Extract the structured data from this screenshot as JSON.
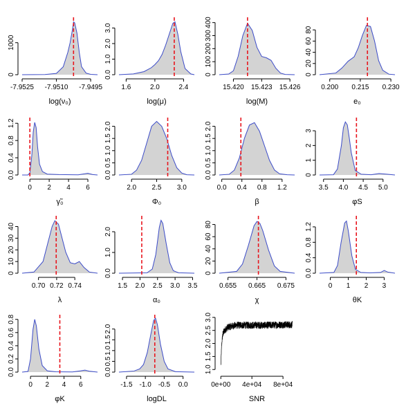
{
  "chart_data": [
    {
      "type": "area",
      "xlabel": "log(ν₀)",
      "xlim": [
        -7.9525,
        -7.9492
      ],
      "ylim": [
        0,
        1750
      ],
      "xticks": [
        -7.9525,
        -7.951,
        -7.9495
      ],
      "xtick_labels": [
        "-7.9525",
        "-7.9510",
        "-7.9495"
      ],
      "yticks": [
        0,
        1000
      ],
      "ytick_labels": [
        "0",
        "1000"
      ],
      "true_value": -7.95025,
      "x": [
        -7.9525,
        -7.9515,
        -7.951,
        -7.9507,
        -7.9505,
        -7.9504,
        -7.9503,
        -7.95025,
        -7.9502,
        -7.9501,
        -7.95,
        -7.9499,
        -7.9497,
        -7.9495,
        -7.9492
      ],
      "y": [
        0,
        5,
        40,
        250,
        700,
        1000,
        1400,
        1650,
        1620,
        1300,
        700,
        250,
        50,
        10,
        0
      ]
    },
    {
      "type": "area",
      "xlabel": "log(μ)",
      "xlim": [
        1.5,
        2.55
      ],
      "ylim": [
        0,
        3.6
      ],
      "xticks": [
        1.6,
        2.0,
        2.4
      ],
      "xtick_labels": [
        "1.6",
        "2.0",
        "2.4"
      ],
      "yticks": [
        0.0,
        1.0,
        2.0,
        3.0
      ],
      "ytick_labels": [
        "0.0",
        "1.0",
        "2.0",
        "3.0"
      ],
      "true_value": 2.27,
      "x": [
        1.5,
        1.7,
        1.85,
        1.95,
        2.0,
        2.05,
        2.1,
        2.15,
        2.2,
        2.25,
        2.28,
        2.32,
        2.36,
        2.42,
        2.5,
        2.55
      ],
      "y": [
        0,
        0.05,
        0.2,
        0.45,
        0.65,
        0.9,
        1.3,
        1.9,
        2.6,
        3.3,
        3.4,
        2.6,
        1.5,
        0.4,
        0.05,
        0
      ]
    },
    {
      "type": "area",
      "xlabel": "log(M)",
      "xlim": [
        15.4185,
        15.4265
      ],
      "ylim": [
        0,
        430
      ],
      "xticks": [
        15.42,
        15.423,
        15.426
      ],
      "xtick_labels": [
        "15.420",
        "15.423",
        "15.426"
      ],
      "yticks": [
        0,
        100,
        200,
        300,
        400
      ],
      "ytick_labels": [
        "0",
        "100",
        "200",
        "300",
        "400"
      ],
      "true_value": 15.4215,
      "x": [
        15.4185,
        15.4195,
        15.42,
        15.4205,
        15.421,
        15.4215,
        15.422,
        15.4225,
        15.423,
        15.4235,
        15.424,
        15.4245,
        15.425,
        15.4255,
        15.4265
      ],
      "y": [
        0,
        5,
        30,
        140,
        300,
        395,
        340,
        210,
        140,
        130,
        110,
        50,
        12,
        2,
        0
      ]
    },
    {
      "type": "area",
      "xlabel": "e₀",
      "xlim": [
        0.195,
        0.232
      ],
      "ylim": [
        0,
        100
      ],
      "xticks": [
        0.2,
        0.215,
        0.23
      ],
      "xtick_labels": [
        "0.200",
        "0.215",
        "0.230"
      ],
      "yticks": [
        0,
        20,
        40,
        60,
        80
      ],
      "ytick_labels": [
        "0",
        "20",
        "40",
        "60",
        "80"
      ],
      "true_value": 0.2185,
      "x": [
        0.195,
        0.203,
        0.206,
        0.209,
        0.212,
        0.214,
        0.216,
        0.218,
        0.22,
        0.222,
        0.224,
        0.226,
        0.229,
        0.232
      ],
      "y": [
        0,
        3,
        12,
        24,
        32,
        48,
        70,
        88,
        86,
        60,
        25,
        8,
        1,
        0
      ]
    },
    {
      "type": "area",
      "xlabel": "γ̃₀",
      "xlim": [
        -0.8,
        7
      ],
      "ylim": [
        0,
        1.3
      ],
      "xticks": [
        0,
        2,
        4,
        6
      ],
      "xtick_labels": [
        "0",
        "2",
        "4",
        "6"
      ],
      "yticks": [
        0.0,
        0.4,
        0.8,
        1.2
      ],
      "ytick_labels": [
        "0.0",
        "0.4",
        "0.8",
        "1.2"
      ],
      "true_value": 0.0,
      "x": [
        -0.8,
        -0.2,
        0.0,
        0.2,
        0.35,
        0.5,
        0.65,
        0.8,
        1.0,
        1.3,
        1.8,
        3,
        5,
        6,
        6.5,
        7
      ],
      "y": [
        0,
        0,
        0.05,
        0.45,
        1.0,
        1.22,
        1.1,
        0.65,
        0.25,
        0.08,
        0.02,
        0.01,
        0.005,
        0.04,
        0.01,
        0
      ]
    },
    {
      "type": "area",
      "xlabel": "Φ₀",
      "xlim": [
        1.75,
        3.25
      ],
      "ylim": [
        0,
        2.3
      ],
      "xticks": [
        2.0,
        2.5,
        3.0
      ],
      "xtick_labels": [
        "2.0",
        "2.5",
        "3.0"
      ],
      "yticks": [
        0.0,
        0.5,
        1.0,
        1.5,
        2.0
      ],
      "ytick_labels": [
        "0.0",
        "0.5",
        "1.0",
        "1.5",
        "2.0"
      ],
      "true_value": 2.72,
      "x": [
        1.75,
        2.0,
        2.1,
        2.2,
        2.3,
        2.4,
        2.5,
        2.6,
        2.7,
        2.8,
        2.9,
        3.0,
        3.1,
        3.25
      ],
      "y": [
        0,
        0.03,
        0.2,
        0.6,
        1.3,
        2.0,
        2.2,
        2.0,
        1.5,
        0.8,
        0.3,
        0.08,
        0.01,
        0
      ]
    },
    {
      "type": "area",
      "xlabel": "β",
      "xlim": [
        -0.05,
        1.45
      ],
      "ylim": [
        0,
        2.3
      ],
      "xticks": [
        0.0,
        0.4,
        0.8,
        1.2
      ],
      "xtick_labels": [
        "0.0",
        "0.4",
        "0.8",
        "1.2"
      ],
      "yticks": [
        0.0,
        0.5,
        1.0,
        1.5,
        2.0
      ],
      "ytick_labels": [
        "0.0",
        "0.5",
        "1.0",
        "1.5",
        "2.0"
      ],
      "true_value": 0.38,
      "x": [
        -0.05,
        0.15,
        0.25,
        0.35,
        0.45,
        0.55,
        0.65,
        0.75,
        0.85,
        0.95,
        1.05,
        1.15,
        1.3,
        1.45
      ],
      "y": [
        0,
        0.03,
        0.2,
        0.7,
        1.5,
        2.05,
        2.15,
        1.8,
        1.2,
        0.6,
        0.2,
        0.05,
        0.01,
        0
      ]
    },
    {
      "type": "area",
      "xlabel": "φS",
      "xlim": [
        3.4,
        5.3
      ],
      "ylim": [
        0,
        3.8
      ],
      "xticks": [
        3.5,
        4.0,
        4.5,
        5.0
      ],
      "xtick_labels": [
        "3.5",
        "4.0",
        "4.5",
        "5.0"
      ],
      "yticks": [
        0,
        1,
        2,
        3
      ],
      "ytick_labels": [
        "0",
        "1",
        "2",
        "3"
      ],
      "true_value": 4.33,
      "x": [
        3.4,
        3.75,
        3.85,
        3.95,
        4.0,
        4.05,
        4.1,
        4.15,
        4.2,
        4.3,
        4.45,
        4.7,
        4.9,
        5.1,
        5.3
      ],
      "y": [
        0,
        0.02,
        0.4,
        2.0,
        3.2,
        3.6,
        3.4,
        2.5,
        1.5,
        0.3,
        0.05,
        0.02,
        0.1,
        0.05,
        0
      ]
    },
    {
      "type": "area",
      "xlabel": "λ",
      "xlim": [
        0.682,
        0.765
      ],
      "ylim": [
        0,
        48
      ],
      "xticks": [
        0.7,
        0.72,
        0.74
      ],
      "xtick_labels": [
        "0.70",
        "0.72",
        "0.74"
      ],
      "yticks": [
        0,
        10,
        20,
        30,
        40
      ],
      "ytick_labels": [
        "0",
        "10",
        "20",
        "30",
        "40"
      ],
      "true_value": 0.7195,
      "x": [
        0.682,
        0.695,
        0.705,
        0.71,
        0.715,
        0.718,
        0.722,
        0.726,
        0.73,
        0.735,
        0.74,
        0.745,
        0.75,
        0.756,
        0.765
      ],
      "y": [
        0,
        1,
        10,
        25,
        40,
        45,
        42,
        30,
        18,
        9,
        8,
        10,
        5,
        1,
        0
      ]
    },
    {
      "type": "area",
      "xlabel": "α₀",
      "xlim": [
        1.4,
        3.55
      ],
      "ylim": [
        0,
        2.7
      ],
      "xticks": [
        1.5,
        2.0,
        2.5,
        3.0,
        3.5
      ],
      "xtick_labels": [
        "1.5",
        "2.0",
        "2.5",
        "3.0",
        "3.5"
      ],
      "yticks": [
        0.0,
        1.0,
        2.0
      ],
      "ytick_labels": [
        "0.0",
        "1.0",
        "2.0"
      ],
      "true_value": 2.05,
      "x": [
        1.4,
        2.2,
        2.35,
        2.45,
        2.55,
        2.6,
        2.65,
        2.75,
        2.85,
        2.95,
        3.1,
        3.55
      ],
      "y": [
        0,
        0.02,
        0.2,
        0.9,
        2.2,
        2.55,
        2.4,
        1.4,
        0.5,
        0.12,
        0.02,
        0
      ]
    },
    {
      "type": "area",
      "xlabel": "χ",
      "xlim": [
        0.652,
        0.678
      ],
      "ylim": [
        0,
        92
      ],
      "xticks": [
        0.655,
        0.665,
        0.675
      ],
      "xtick_labels": [
        "0.655",
        "0.665",
        "0.675"
      ],
      "yticks": [
        0,
        20,
        40,
        60,
        80
      ],
      "ytick_labels": [
        "0",
        "20",
        "40",
        "60",
        "80"
      ],
      "true_value": 0.6655,
      "x": [
        0.652,
        0.658,
        0.66,
        0.662,
        0.664,
        0.665,
        0.666,
        0.667,
        0.669,
        0.671,
        0.673,
        0.678
      ],
      "y": [
        0,
        3,
        15,
        45,
        78,
        85,
        82,
        70,
        38,
        12,
        3,
        0
      ]
    },
    {
      "type": "area",
      "xlabel": "θK",
      "xlim": [
        -0.6,
        3.6
      ],
      "ylim": [
        0,
        1.45
      ],
      "xticks": [
        0,
        1,
        2,
        3
      ],
      "xtick_labels": [
        "0",
        "1",
        "2",
        "3"
      ],
      "yticks": [
        0.0,
        0.4,
        0.8,
        1.2
      ],
      "ytick_labels": [
        "0.0",
        "0.4",
        "0.8",
        "1.2"
      ],
      "true_value": 1.45,
      "x": [
        -0.6,
        0.2,
        0.4,
        0.6,
        0.8,
        0.9,
        1.0,
        1.2,
        1.4,
        1.7,
        2.2,
        2.8,
        3.0,
        3.2,
        3.6
      ],
      "y": [
        0,
        0.02,
        0.2,
        0.8,
        1.3,
        1.35,
        1.1,
        0.45,
        0.1,
        0.02,
        0.01,
        0.02,
        0.07,
        0.03,
        0
      ]
    },
    {
      "type": "area",
      "xlabel": "φK",
      "xlim": [
        -1,
        8
      ],
      "ylim": [
        0,
        0.85
      ],
      "xticks": [
        0,
        2,
        4,
        6
      ],
      "xtick_labels": [
        "0",
        "2",
        "4",
        "6"
      ],
      "yticks": [
        0.0,
        0.2,
        0.4,
        0.6,
        0.8
      ],
      "ytick_labels": [
        "0.0",
        "0.2",
        "0.4",
        "0.6",
        "0.8"
      ],
      "true_value": 3.5,
      "x": [
        -1,
        -0.3,
        0.0,
        0.3,
        0.5,
        0.7,
        1.0,
        1.4,
        2.0,
        3,
        5,
        6,
        6.5,
        7,
        8
      ],
      "y": [
        0,
        0.01,
        0.2,
        0.65,
        0.8,
        0.7,
        0.35,
        0.1,
        0.02,
        0.005,
        0.003,
        0.02,
        0.03,
        0.015,
        0
      ]
    },
    {
      "type": "area",
      "xlabel": "logDL",
      "xlim": [
        -1.7,
        0.3
      ],
      "ylim": [
        0,
        2.6
      ],
      "xticks": [
        -1.5,
        -1.0,
        -0.5,
        0.0
      ],
      "xtick_labels": [
        "-1.5",
        "-1.0",
        "-0.5",
        "0.0"
      ],
      "yticks": [
        0.0,
        0.5,
        1.0,
        1.5,
        2.0
      ],
      "ytick_labels": [
        "0.0",
        "0.5",
        "1.0",
        "1.5",
        "2.0"
      ],
      "true_value": -0.75,
      "x": [
        -1.7,
        -1.3,
        -1.15,
        -1.05,
        -0.95,
        -0.85,
        -0.78,
        -0.73,
        -0.68,
        -0.6,
        -0.5,
        -0.4,
        -0.2,
        0.3
      ],
      "y": [
        0,
        0.05,
        0.15,
        0.35,
        0.9,
        1.8,
        2.4,
        2.5,
        2.2,
        1.3,
        0.5,
        0.15,
        0.02,
        0
      ]
    },
    {
      "type": "line",
      "xlabel": "SNR",
      "xlim": [
        -2000,
        95000
      ],
      "ylim": [
        0.9,
        3.05
      ],
      "xticks": [
        0,
        40000,
        80000
      ],
      "xtick_labels": [
        "0e+00",
        "4e+04",
        "8e+04"
      ],
      "yticks": [
        1.0,
        1.5,
        2.0,
        2.5,
        3.0
      ],
      "ytick_labels": [
        "1.0",
        "1.5",
        "2.0",
        "2.5",
        "3.0"
      ],
      "x": [
        0,
        500,
        1000,
        2000,
        3000,
        5000,
        8000,
        12000,
        20000,
        40000,
        60000,
        80000,
        92000
      ],
      "y": [
        1.15,
        1.55,
        1.9,
        2.25,
        2.4,
        2.5,
        2.6,
        2.65,
        2.7,
        2.7,
        2.7,
        2.72,
        2.72
      ],
      "noise_amplitude": 0.14
    }
  ]
}
